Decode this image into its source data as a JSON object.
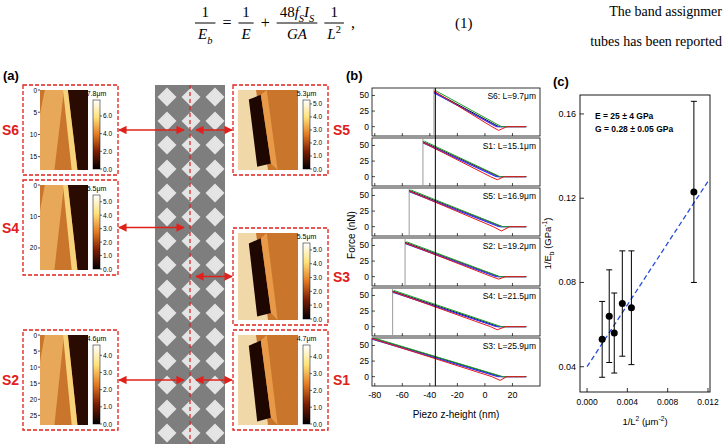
{
  "equation": {
    "terms": [
      {
        "num": [
          {
            "text": "1"
          }
        ],
        "den": [
          {
            "text": "E",
            "italic": true
          },
          {
            "text": "b",
            "italic": true,
            "sub": true
          }
        ]
      },
      {
        "op": "="
      },
      {
        "num": [
          {
            "text": "1"
          }
        ],
        "den": [
          {
            "text": "E",
            "italic": true
          }
        ]
      },
      {
        "op": "+"
      },
      {
        "num": [
          {
            "text": "48"
          },
          {
            "text": "f",
            "italic": true
          },
          {
            "text": "S",
            "italic": true,
            "sub": true
          },
          {
            "text": "I",
            "italic": true
          },
          {
            "text": "S",
            "italic": true,
            "sub": true
          }
        ],
        "den": [
          {
            "text": "GA",
            "italic": true
          }
        ]
      },
      {
        "num": [
          {
            "text": "1"
          }
        ],
        "den": [
          {
            "text": "L",
            "italic": true
          },
          {
            "text": "2",
            "sup": true
          }
        ]
      },
      {
        "op": ","
      }
    ],
    "number": "(1)"
  },
  "side_text": [
    "The band assignmer",
    "tubes has been reported"
  ],
  "panel_a": {
    "label": "(a)",
    "left": [
      {
        "name": "S6",
        "scale_label": "7.8μm",
        "colorbar_range": [
          0,
          7.8
        ],
        "colorbar_ticks": [
          {
            "value": 0,
            "label": "0.0"
          },
          {
            "value": 2,
            "label": "2.0"
          },
          {
            "value": 4,
            "label": "4.0"
          },
          {
            "value": 6,
            "label": "6.0"
          }
        ],
        "image_range": [
          0,
          18
        ],
        "image_ticks": [
          0,
          5,
          10,
          15
        ]
      },
      {
        "name": "S4",
        "scale_label": "5.5μm",
        "colorbar_range": [
          0,
          5.5
        ],
        "colorbar_ticks": [
          {
            "value": 0,
            "label": "0.0"
          },
          {
            "value": 1,
            "label": "1.0"
          },
          {
            "value": 2,
            "label": "2.0"
          },
          {
            "value": 3,
            "label": "3.0"
          },
          {
            "value": 4,
            "label": "4.0"
          },
          {
            "value": 5,
            "label": "5.0"
          }
        ],
        "image_range": [
          0,
          27
        ],
        "image_ticks": [
          0,
          10,
          20
        ]
      },
      {
        "name": "S2",
        "scale_label": "4.6μm",
        "colorbar_range": [
          0,
          4.6
        ],
        "colorbar_ticks": [
          {
            "value": 0,
            "label": "0.0"
          },
          {
            "value": 1,
            "label": "1.0"
          },
          {
            "value": 2,
            "label": "2.0"
          },
          {
            "value": 3,
            "label": "3.0"
          },
          {
            "value": 4,
            "label": "4.0"
          }
        ],
        "image_range": [
          0,
          28
        ],
        "image_ticks": [
          0,
          5,
          10,
          15,
          20,
          25
        ]
      }
    ],
    "right": [
      {
        "name": "S5",
        "scale_label": "5.3μm",
        "colorbar_range": [
          0,
          5.3
        ],
        "colorbar_ticks": [
          {
            "value": 0,
            "label": "0.0"
          },
          {
            "value": 1,
            "label": "1.0"
          },
          {
            "value": 2,
            "label": "2.0"
          },
          {
            "value": 3,
            "label": "3.0"
          },
          {
            "value": 4,
            "label": "4.0"
          },
          {
            "value": 5,
            "label": "5.0"
          }
        ]
      },
      {
        "name": "S3",
        "scale_label": "5.5μm",
        "colorbar_range": [
          0,
          5.5
        ],
        "colorbar_ticks": [
          {
            "value": 0,
            "label": "0.0"
          },
          {
            "value": 1,
            "label": "1.0"
          },
          {
            "value": 2,
            "label": "2.0"
          },
          {
            "value": 3,
            "label": "3.0"
          },
          {
            "value": 4,
            "label": "4.0"
          },
          {
            "value": 5,
            "label": "5.0"
          }
        ]
      },
      {
        "name": "S1",
        "scale_label": "4.7μm",
        "colorbar_range": [
          0,
          4.7
        ],
        "colorbar_ticks": [
          {
            "value": 0,
            "label": "0.0"
          },
          {
            "value": 1,
            "label": "1.0"
          },
          {
            "value": 2,
            "label": "2.0"
          },
          {
            "value": 3,
            "label": "3.0"
          },
          {
            "value": 4,
            "label": "4.0"
          }
        ]
      }
    ]
  },
  "chart_data": [
    {
      "type": "line",
      "label": "(b)",
      "x_label": "Piezo z-height (nm)",
      "y_label": "Force (nN)",
      "xlim": [
        -82,
        40
      ],
      "xticks": [
        -80,
        -60,
        -40,
        -20,
        0,
        20
      ],
      "reference_x": -36,
      "panels": [
        {
          "title": "S6: L=9.7μm",
          "ylim": [
            -15,
            62
          ],
          "yticks": [
            0,
            25,
            50
          ],
          "vline": -37,
          "series": [
            {
              "color": "#000000",
              "x": [
                30,
                10,
                -37
              ],
              "values": [
                0,
                0,
                56
              ]
            },
            {
              "color": "#9b30c8",
              "x": [
                30,
                8,
                -37
              ],
              "values": [
                0,
                0,
                55
              ]
            },
            {
              "color": "#1f3cff",
              "x": [
                30,
                9,
                -37
              ],
              "values": [
                0,
                0,
                54
              ]
            },
            {
              "color": "#22a02c",
              "x": [
                30,
                12,
                -36
              ],
              "values": [
                0,
                0,
                58
              ]
            },
            {
              "color": "#e41a1c",
              "x": [
                30,
                16,
                10,
                5,
                -37
              ],
              "values": [
                0,
                0,
                -6,
                0,
                57
              ]
            }
          ]
        },
        {
          "title": "S1: L=15.1μm",
          "ylim": [
            -15,
            62
          ],
          "yticks": [
            0,
            25,
            50
          ],
          "vline": -45,
          "series": [
            {
              "color": "#000000",
              "x": [
                30,
                10,
                -45
              ],
              "values": [
                0,
                0,
                56
              ]
            },
            {
              "color": "#9b30c8",
              "x": [
                30,
                9,
                -45
              ],
              "values": [
                0,
                0,
                55
              ]
            },
            {
              "color": "#1f3cff",
              "x": [
                30,
                8,
                -45
              ],
              "values": [
                0,
                0,
                54
              ]
            },
            {
              "color": "#22a02c",
              "x": [
                30,
                11,
                -44
              ],
              "values": [
                0,
                0,
                57
              ]
            },
            {
              "color": "#e41a1c",
              "x": [
                30,
                14,
                9,
                4,
                -45
              ],
              "values": [
                0,
                0,
                -5,
                0,
                55
              ]
            }
          ]
        },
        {
          "title": "S5: L=16.9μm",
          "ylim": [
            -15,
            62
          ],
          "yticks": [
            0,
            25,
            50
          ],
          "vline": -55,
          "series": [
            {
              "color": "#000000",
              "x": [
                30,
                12,
                -55
              ],
              "values": [
                0,
                0,
                58
              ]
            },
            {
              "color": "#9b30c8",
              "x": [
                30,
                11,
                -55
              ],
              "values": [
                0,
                0,
                57
              ]
            },
            {
              "color": "#1f3cff",
              "x": [
                30,
                10,
                -55
              ],
              "values": [
                0,
                0,
                56
              ]
            },
            {
              "color": "#22a02c",
              "x": [
                30,
                13,
                -54
              ],
              "values": [
                0,
                0,
                59
              ]
            },
            {
              "color": "#e41a1c",
              "x": [
                30,
                18,
                12,
                6,
                -55
              ],
              "values": [
                0,
                0,
                -7,
                0,
                57
              ]
            }
          ]
        },
        {
          "title": "S2: L=19.2μm",
          "ylim": [
            -15,
            62
          ],
          "yticks": [
            0,
            25,
            50
          ],
          "vline": -58,
          "series": [
            {
              "color": "#000000",
              "x": [
                30,
                10,
                -58
              ],
              "values": [
                0,
                0,
                55
              ]
            },
            {
              "color": "#9b30c8",
              "x": [
                30,
                9,
                -58
              ],
              "values": [
                0,
                0,
                54
              ]
            },
            {
              "color": "#1f3cff",
              "x": [
                30,
                8,
                -58
              ],
              "values": [
                0,
                0,
                53
              ]
            },
            {
              "color": "#22a02c",
              "x": [
                30,
                11,
                -57
              ],
              "values": [
                0,
                0,
                56
              ]
            },
            {
              "color": "#e41a1c",
              "x": [
                30,
                15,
                10,
                5,
                -58
              ],
              "values": [
                0,
                0,
                -4,
                0,
                54
              ]
            }
          ]
        },
        {
          "title": "S4: L=21.5μm",
          "ylim": [
            -15,
            62
          ],
          "yticks": [
            0,
            25,
            50
          ],
          "vline": -67,
          "series": [
            {
              "color": "#000000",
              "x": [
                30,
                10,
                -67
              ],
              "values": [
                0,
                0,
                57
              ]
            },
            {
              "color": "#9b30c8",
              "x": [
                30,
                8,
                -67
              ],
              "values": [
                0,
                0,
                56
              ]
            },
            {
              "color": "#1f3cff",
              "x": [
                30,
                9,
                -67
              ],
              "values": [
                0,
                0,
                55
              ]
            },
            {
              "color": "#22a02c",
              "x": [
                30,
                12,
                -66
              ],
              "values": [
                0,
                0,
                58
              ]
            },
            {
              "color": "#e41a1c",
              "x": [
                30,
                15,
                9,
                4,
                -67
              ],
              "values": [
                0,
                0,
                -5,
                0,
                56
              ]
            }
          ]
        },
        {
          "title": "S3: L=25.9μm",
          "ylim": [
            -15,
            62
          ],
          "yticks": [
            0,
            25,
            50
          ],
          "series": [
            {
              "color": "#000000",
              "x": [
                30,
                12,
                -82
              ],
              "values": [
                0,
                0,
                62
              ]
            },
            {
              "color": "#9b30c8",
              "x": [
                30,
                9,
                -82
              ],
              "values": [
                0,
                0,
                61
              ]
            },
            {
              "color": "#1f3cff",
              "x": [
                30,
                10,
                -82
              ],
              "values": [
                0,
                0,
                60
              ]
            },
            {
              "color": "#22a02c",
              "x": [
                30,
                13,
                -82
              ],
              "values": [
                0,
                0,
                63
              ]
            },
            {
              "color": "#e41a1c",
              "x": [
                30,
                16,
                11,
                5,
                -82
              ],
              "values": [
                0,
                0,
                -6,
                0,
                61
              ]
            }
          ]
        }
      ]
    },
    {
      "type": "scatter",
      "label": "(c)",
      "x_label": [
        {
          "text": "1/L"
        },
        {
          "text": "2",
          "sup": true
        },
        {
          "text": " (μm"
        },
        {
          "text": "-2",
          "sup": true
        },
        {
          "text": ")"
        }
      ],
      "y_label": [
        {
          "text": "1/E"
        },
        {
          "text": "b",
          "sub": true
        },
        {
          "text": " (GPa"
        },
        {
          "text": "-1",
          "sup": true
        },
        {
          "text": ")"
        }
      ],
      "xlim": [
        -0.0007,
        0.0122
      ],
      "xticks": [
        {
          "value": 0,
          "label": "0.000"
        },
        {
          "value": 0.004,
          "label": "0.004"
        },
        {
          "value": 0.008,
          "label": "0.008"
        },
        {
          "value": 0.012,
          "label": "0.012"
        }
      ],
      "ylim": [
        0.028,
        0.169
      ],
      "yticks": [
        0.04,
        0.08,
        0.12,
        0.16
      ],
      "x": [
        0.0015,
        0.0022,
        0.0027,
        0.0035,
        0.0044,
        0.0106
      ],
      "values": [
        0.053,
        0.064,
        0.056,
        0.07,
        0.068,
        0.123
      ],
      "errors": [
        0.018,
        0.022,
        0.019,
        0.025,
        0.027,
        0.043
      ],
      "color": "#000000",
      "marker": "circle",
      "fit": {
        "x": [
          0,
          0.012
        ],
        "values": [
          0.04,
          0.128
        ],
        "color": "#2b4fd8",
        "line_style": "dashed"
      },
      "annotations": [
        "E = 25 ± 4 GPa",
        "G = 0.28 ± 0.05 GPa"
      ]
    }
  ]
}
